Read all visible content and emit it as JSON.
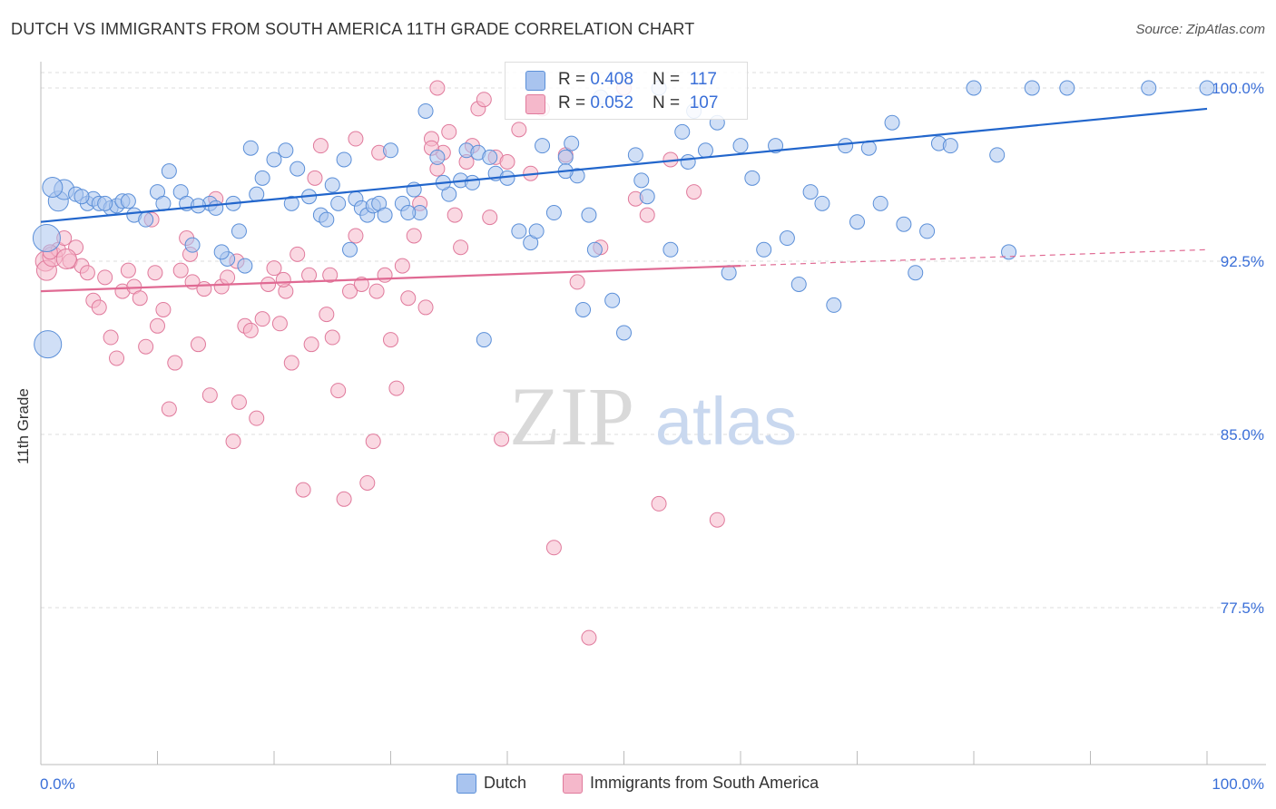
{
  "title": "DUTCH VS IMMIGRANTS FROM SOUTH AMERICA 11TH GRADE CORRELATION CHART",
  "source": "Source: ZipAtlas.com",
  "watermark": {
    "part1": "ZIP",
    "part2": "atlas"
  },
  "colors": {
    "dutch_fill": "#a9c4ef",
    "dutch_stroke": "#5b8fd8",
    "dutch_line": "#2266cc",
    "sa_fill": "#f5b8cb",
    "sa_stroke": "#e07a9c",
    "sa_line": "#e06a93",
    "axis_text": "#3a6fd8",
    "grid": "#dddddd"
  },
  "legend": {
    "rows": [
      {
        "r_label": "R = ",
        "r_value": "0.408",
        "n_label": "N = ",
        "n_value": "117"
      },
      {
        "r_label": "R = ",
        "r_value": "0.052",
        "n_label": "N = ",
        "n_value": "107"
      }
    ]
  },
  "bottom_legend": {
    "dutch": "Dutch",
    "sa": "Immigrants from South America"
  },
  "chart_data": {
    "type": "scatter",
    "title": "DUTCH VS IMMIGRANTS FROM SOUTH AMERICA 11TH GRADE CORRELATION CHART",
    "xlabel": "",
    "ylabel": "11th Grade",
    "xlim": [
      0,
      100
    ],
    "ylim": [
      70.5,
      101
    ],
    "x_tick_labels": [
      "0.0%",
      "100.0%"
    ],
    "y_ticks": [
      77.5,
      85.0,
      92.5,
      100.0
    ],
    "y_tick_labels": [
      "77.5%",
      "85.0%",
      "92.5%",
      "100.0%"
    ],
    "grid": true,
    "legend_position": "top-center",
    "series": [
      {
        "name": "Dutch",
        "trend": {
          "x": [
            0,
            100
          ],
          "y": [
            94.2,
            99.1
          ]
        },
        "points": [
          [
            0.5,
            93.5,
            3
          ],
          [
            0.6,
            88.9,
            3
          ],
          [
            1.5,
            95.1,
            2
          ],
          [
            2.0,
            95.6,
            2
          ],
          [
            3.0,
            95.4,
            1
          ],
          [
            4.0,
            95.0,
            1
          ],
          [
            4.5,
            95.2,
            1
          ],
          [
            5.0,
            95.0,
            1
          ],
          [
            6.0,
            94.8,
            1
          ],
          [
            6.5,
            94.9,
            1
          ],
          [
            7.0,
            95.1,
            1
          ],
          [
            8.0,
            94.5,
            1
          ],
          [
            9.0,
            94.3,
            1
          ],
          [
            10.0,
            95.5,
            1
          ],
          [
            11.0,
            96.4,
            1
          ],
          [
            12.0,
            95.5,
            1
          ],
          [
            12.5,
            95.0,
            1
          ],
          [
            13.0,
            93.2,
            1
          ],
          [
            14.5,
            95.0,
            1
          ],
          [
            15.0,
            94.8,
            1
          ],
          [
            16.0,
            92.6,
            1
          ],
          [
            16.5,
            95.0,
            1
          ],
          [
            17.0,
            93.8,
            1
          ],
          [
            17.5,
            92.3,
            1
          ],
          [
            18.0,
            97.4,
            1
          ],
          [
            19.0,
            96.1,
            1
          ],
          [
            20.0,
            96.9,
            1
          ],
          [
            21.0,
            97.3,
            1
          ],
          [
            22.0,
            96.5,
            1
          ],
          [
            23.0,
            95.3,
            1
          ],
          [
            24.0,
            94.5,
            1
          ],
          [
            25.0,
            95.8,
            1
          ],
          [
            25.5,
            95.0,
            1
          ],
          [
            26.0,
            96.9,
            1
          ],
          [
            27.0,
            95.2,
            1
          ],
          [
            27.5,
            94.8,
            1
          ],
          [
            28.0,
            94.5,
            1
          ],
          [
            28.5,
            94.9,
            1
          ],
          [
            29.0,
            95.0,
            1
          ],
          [
            30.0,
            97.3,
            1
          ],
          [
            31.0,
            95.0,
            1
          ],
          [
            32.0,
            95.6,
            1
          ],
          [
            32.5,
            94.6,
            1
          ],
          [
            33.0,
            99.0,
            1
          ],
          [
            34.0,
            97.0,
            1
          ],
          [
            35.0,
            95.4,
            1
          ],
          [
            36.0,
            96.0,
            1
          ],
          [
            36.5,
            97.3,
            1
          ],
          [
            37.0,
            95.9,
            1
          ],
          [
            37.5,
            97.2,
            1
          ],
          [
            38.0,
            89.1,
            1
          ],
          [
            39.0,
            96.3,
            1
          ],
          [
            40.0,
            96.1,
            1
          ],
          [
            41.0,
            93.8,
            1
          ],
          [
            42.0,
            93.3,
            1
          ],
          [
            43.0,
            97.5,
            1
          ],
          [
            44.0,
            94.6,
            1
          ],
          [
            45.0,
            97.0,
            1
          ],
          [
            45.5,
            97.6,
            1
          ],
          [
            46.0,
            96.2,
            1
          ],
          [
            47.0,
            94.5,
            1
          ],
          [
            48.0,
            99.6,
            1
          ],
          [
            49.0,
            90.8,
            1
          ],
          [
            50.0,
            89.4,
            1
          ],
          [
            51.0,
            97.1,
            1
          ],
          [
            52.0,
            95.3,
            1
          ],
          [
            53.0,
            100.0,
            1
          ],
          [
            54.0,
            93.0,
            1
          ],
          [
            55.0,
            98.1,
            1
          ],
          [
            56.0,
            99.0,
            1
          ],
          [
            57.0,
            97.3,
            1
          ],
          [
            58.0,
            98.5,
            1
          ],
          [
            59.0,
            92.0,
            1
          ],
          [
            60.0,
            97.5,
            1
          ],
          [
            61.0,
            96.1,
            1
          ],
          [
            62.0,
            93.0,
            1
          ],
          [
            63.0,
            97.5,
            1
          ],
          [
            64.0,
            93.5,
            1
          ],
          [
            65.0,
            91.5,
            1
          ],
          [
            66.0,
            95.5,
            1
          ],
          [
            67.0,
            95.0,
            1
          ],
          [
            68.0,
            90.6,
            1
          ],
          [
            69.0,
            97.5,
            1
          ],
          [
            70.0,
            94.2,
            1
          ],
          [
            71.0,
            97.4,
            1
          ],
          [
            72.0,
            95.0,
            1
          ],
          [
            73.0,
            98.5,
            1
          ],
          [
            74.0,
            94.1,
            1
          ],
          [
            75.0,
            92.0,
            1
          ],
          [
            76.0,
            93.8,
            1
          ],
          [
            77.0,
            97.6,
            1
          ],
          [
            78.0,
            97.5,
            1
          ],
          [
            80.0,
            100.0,
            1
          ],
          [
            82.0,
            97.1,
            1
          ],
          [
            83.0,
            92.9,
            1
          ],
          [
            85.0,
            100.0,
            1
          ],
          [
            88.0,
            100.0,
            1
          ],
          [
            95.0,
            100.0,
            1
          ],
          [
            100.0,
            100.0,
            1
          ],
          [
            1.0,
            95.7,
            2
          ],
          [
            3.5,
            95.3,
            1
          ],
          [
            5.5,
            95.0,
            1
          ],
          [
            7.5,
            95.1,
            1
          ],
          [
            10.5,
            95.0,
            1
          ],
          [
            13.5,
            94.9,
            1
          ],
          [
            15.5,
            92.9,
            1
          ],
          [
            18.5,
            95.4,
            1
          ],
          [
            21.5,
            95.0,
            1
          ],
          [
            24.5,
            94.3,
            1
          ],
          [
            26.5,
            93.0,
            1
          ],
          [
            29.5,
            94.5,
            1
          ],
          [
            31.5,
            94.6,
            1
          ],
          [
            34.5,
            95.9,
            1
          ],
          [
            38.5,
            97.0,
            1
          ],
          [
            42.5,
            93.8,
            1
          ],
          [
            45.0,
            96.4,
            1
          ],
          [
            46.5,
            90.4,
            1
          ],
          [
            47.5,
            93.0,
            1
          ],
          [
            51.5,
            96.0,
            1
          ],
          [
            55.5,
            96.8,
            1
          ]
        ]
      },
      {
        "name": "Immigrants from South America",
        "trend": {
          "x": [
            0,
            60
          ],
          "y": [
            91.2,
            92.3
          ]
        },
        "trend_dashed": {
          "x": [
            60,
            100
          ],
          "y": [
            92.3,
            93.0
          ]
        },
        "points": [
          [
            0.4,
            92.5,
            2
          ],
          [
            0.5,
            92.1,
            2
          ],
          [
            1.0,
            92.7,
            2
          ],
          [
            1.5,
            93.0,
            1
          ],
          [
            2.0,
            93.5,
            1
          ],
          [
            2.5,
            92.5,
            1
          ],
          [
            3.0,
            93.1,
            1
          ],
          [
            3.5,
            92.3,
            1
          ],
          [
            4.0,
            92.0,
            1
          ],
          [
            4.5,
            90.8,
            1
          ],
          [
            5.0,
            90.5,
            1
          ],
          [
            5.5,
            91.8,
            1
          ],
          [
            6.0,
            89.2,
            1
          ],
          [
            6.5,
            88.3,
            1
          ],
          [
            7.0,
            91.2,
            1
          ],
          [
            7.5,
            92.1,
            1
          ],
          [
            8.0,
            91.4,
            1
          ],
          [
            8.5,
            90.9,
            1
          ],
          [
            9.0,
            88.8,
            1
          ],
          [
            9.5,
            94.3,
            1
          ],
          [
            10.0,
            89.7,
            1
          ],
          [
            10.5,
            90.4,
            1
          ],
          [
            11.0,
            86.1,
            1
          ],
          [
            11.5,
            88.1,
            1
          ],
          [
            12.0,
            92.1,
            1
          ],
          [
            12.5,
            93.5,
            1
          ],
          [
            13.0,
            91.6,
            1
          ],
          [
            13.5,
            88.9,
            1
          ],
          [
            14.0,
            91.3,
            1
          ],
          [
            14.5,
            86.7,
            1
          ],
          [
            15.0,
            95.2,
            1
          ],
          [
            15.5,
            91.4,
            1
          ],
          [
            16.0,
            91.8,
            1
          ],
          [
            16.5,
            84.7,
            1
          ],
          [
            17.0,
            86.4,
            1
          ],
          [
            17.5,
            89.7,
            1
          ],
          [
            18.0,
            89.5,
            1
          ],
          [
            18.5,
            85.7,
            1
          ],
          [
            19.0,
            90.0,
            1
          ],
          [
            19.5,
            91.5,
            1
          ],
          [
            20.0,
            92.2,
            1
          ],
          [
            20.5,
            89.8,
            1
          ],
          [
            21.0,
            91.2,
            1
          ],
          [
            21.5,
            88.1,
            1
          ],
          [
            22.0,
            92.8,
            1
          ],
          [
            22.5,
            82.6,
            1
          ],
          [
            23.0,
            91.9,
            1
          ],
          [
            23.5,
            96.1,
            1
          ],
          [
            24.0,
            97.5,
            1
          ],
          [
            24.5,
            90.2,
            1
          ],
          [
            25.0,
            89.2,
            1
          ],
          [
            25.5,
            86.9,
            1
          ],
          [
            26.0,
            82.2,
            1
          ],
          [
            26.5,
            91.2,
            1
          ],
          [
            27.0,
            93.6,
            1
          ],
          [
            27.5,
            91.5,
            1
          ],
          [
            28.0,
            82.9,
            1
          ],
          [
            28.5,
            84.7,
            1
          ],
          [
            29.0,
            97.2,
            1
          ],
          [
            29.5,
            91.9,
            1
          ],
          [
            30.0,
            89.1,
            1
          ],
          [
            30.5,
            87.0,
            1
          ],
          [
            31.0,
            92.3,
            1
          ],
          [
            31.5,
            90.9,
            1
          ],
          [
            32.0,
            93.6,
            1
          ],
          [
            32.5,
            95.0,
            1
          ],
          [
            33.0,
            90.5,
            1
          ],
          [
            33.5,
            97.8,
            1
          ],
          [
            34.0,
            96.5,
            1
          ],
          [
            34.5,
            97.2,
            1
          ],
          [
            35.0,
            98.1,
            1
          ],
          [
            35.5,
            94.5,
            1
          ],
          [
            36.0,
            93.1,
            1
          ],
          [
            36.5,
            96.8,
            1
          ],
          [
            37.0,
            97.5,
            1
          ],
          [
            37.5,
            99.1,
            1
          ],
          [
            38.0,
            99.5,
            1
          ],
          [
            38.5,
            94.4,
            1
          ],
          [
            39.0,
            97.0,
            1
          ],
          [
            39.5,
            84.8,
            1
          ],
          [
            40.0,
            96.8,
            1
          ],
          [
            41.0,
            98.2,
            1
          ],
          [
            42.0,
            96.3,
            1
          ],
          [
            43.0,
            99.1,
            1
          ],
          [
            44.0,
            80.1,
            1
          ],
          [
            45.0,
            97.1,
            1
          ],
          [
            46.0,
            91.6,
            1
          ],
          [
            47.0,
            76.2,
            1
          ],
          [
            48.0,
            93.1,
            1
          ],
          [
            50.0,
            100.0,
            1
          ],
          [
            51.0,
            95.2,
            1
          ],
          [
            52.0,
            94.5,
            1
          ],
          [
            53.0,
            82.0,
            1
          ],
          [
            54.0,
            96.9,
            1
          ],
          [
            56.0,
            95.5,
            1
          ],
          [
            58.0,
            81.3,
            1
          ],
          [
            2.2,
            92.6,
            2
          ],
          [
            0.8,
            92.9,
            1
          ],
          [
            9.8,
            92.0,
            1
          ],
          [
            12.8,
            92.8,
            1
          ],
          [
            16.8,
            92.5,
            1
          ],
          [
            20.8,
            91.7,
            1
          ],
          [
            24.8,
            91.9,
            1
          ],
          [
            28.8,
            91.2,
            1
          ],
          [
            23.2,
            88.9,
            1
          ],
          [
            34.0,
            100.0,
            1
          ],
          [
            27.0,
            97.8,
            1
          ],
          [
            33.5,
            97.4,
            1
          ]
        ]
      }
    ]
  }
}
